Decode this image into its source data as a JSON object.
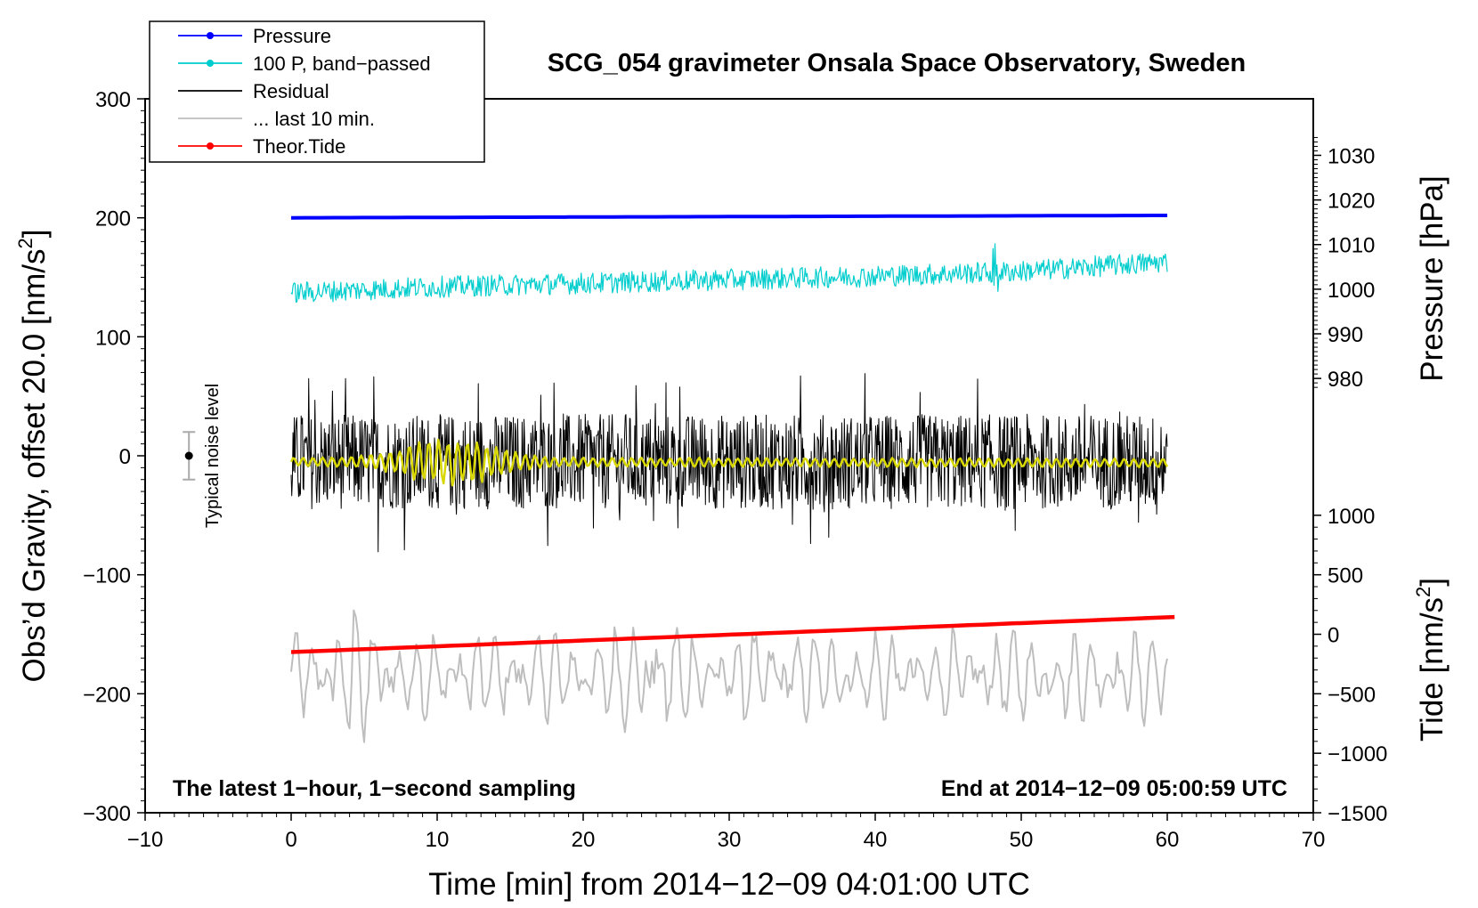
{
  "chart_data": {
    "type": "line",
    "title": "SCG_054 gravimeter Onsala Space Observatory, Sweden",
    "xlabel": "Time [min] from 2014−12−09 04:01:00 UTC",
    "ylabel_left": "Obs’d Gravity, offset 20.0 [nm/s²]",
    "ylabel_left_main": "Obs’d Gravity, offset 20.0 [nm/s",
    "ylabel_left_tail": "]",
    "ylabel_right_top": "Pressure [hPa]",
    "ylabel_right_bottom_main": "Tide [nm/s",
    "ylabel_right_bottom_tail": "]",
    "superscript": "2",
    "xlim": [
      -10,
      70
    ],
    "ylim_left": [
      -300,
      300
    ],
    "x_ticks": [
      -10,
      0,
      10,
      20,
      30,
      40,
      50,
      60,
      70
    ],
    "x_tick_labels": [
      "−10",
      "0",
      "10",
      "20",
      "30",
      "40",
      "50",
      "60",
      "70"
    ],
    "y_left_ticks": [
      300,
      200,
      100,
      0,
      -100,
      -200,
      -300
    ],
    "y_left_tick_labels": [
      "300",
      "200",
      "100",
      "0",
      "−100",
      "−200",
      "−300"
    ],
    "pressure_axis": {
      "ticks": [
        1030,
        1020,
        1010,
        1000,
        990,
        980
      ],
      "tick_labels": [
        "1030",
        "1020",
        "1010",
        "1000",
        "990",
        "980"
      ],
      "ref_hpa": 1000,
      "ref_left_value": 140,
      "nm_per_hpa": 3.75
    },
    "tide_axis": {
      "ticks": [
        1000,
        500,
        0,
        -500,
        -1000,
        -1500
      ],
      "tick_labels": [
        "1000",
        "500",
        "0",
        "−500",
        "−1000",
        "−1500"
      ],
      "ref_tide": 0,
      "ref_left_value": -150,
      "nm_per_tide": 0.1
    },
    "annotations": {
      "bottom_left": "The latest 1−hour, 1−second sampling",
      "bottom_right": "End at 2014−12−09 05:00:59 UTC",
      "noise_label": "Typical noise level",
      "noise_level": {
        "x": -7,
        "center": 0,
        "half_range": 20
      }
    },
    "legend": [
      {
        "label": "Pressure",
        "color": "#0000ff",
        "marker": true
      },
      {
        "label": "100 P, band−passed",
        "color": "#00cdcd",
        "marker": true
      },
      {
        "label": "Residual",
        "color": "#000000",
        "marker": false
      },
      {
        "label": "... last 10 min.",
        "color": "#bebebe",
        "marker": false
      },
      {
        "label": "Theor.Tide",
        "color": "#ff0000",
        "marker": true
      }
    ],
    "series": [
      {
        "name": "Pressure",
        "color": "#0000ff",
        "axis": "left",
        "x": [
          0,
          60
        ],
        "y": [
          200,
          202
        ]
      },
      {
        "name": "100 P, band−passed",
        "color": "#00cdcd",
        "axis": "left",
        "x": [
          0,
          10,
          20,
          30,
          40,
          50,
          60
        ],
        "y": [
          137,
          142,
          145,
          148,
          151,
          155,
          163
        ],
        "amplitude": 9
      },
      {
        "name": "Residual",
        "color": "#000000",
        "axis": "left",
        "x": [
          0,
          60
        ],
        "y": [
          -5,
          -5
        ],
        "amplitude": 40
      },
      {
        "name": "Residual (smoothed)",
        "color": "#d8d800",
        "axis": "left",
        "x": [
          0,
          60
        ],
        "y": [
          -5,
          -6
        ],
        "amplitude": 8
      },
      {
        "name": "... last 10 min.",
        "color": "#bebebe",
        "axis": "left",
        "x": [
          0,
          60
        ],
        "y": [
          -185,
          -185
        ],
        "amplitude": 45
      },
      {
        "name": "Theor.Tide",
        "color": "#ff0000",
        "axis": "tide",
        "x": [
          0,
          60.5
        ],
        "y": [
          -150,
          145
        ]
      }
    ]
  }
}
